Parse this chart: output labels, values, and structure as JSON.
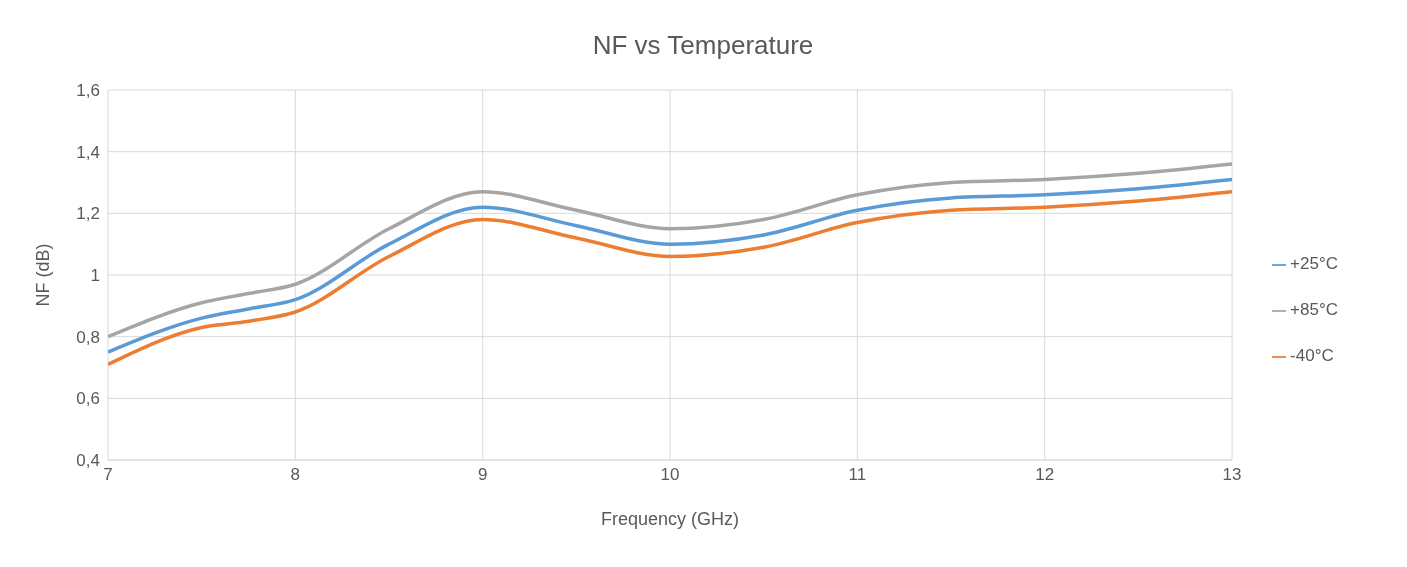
{
  "chart_data": {
    "type": "line",
    "title": "NF vs Temperature",
    "xlabel": "Frequency (GHz)",
    "ylabel": "NF (dB)",
    "x": [
      7,
      7.5,
      7.75,
      8,
      8.5,
      9,
      9.5,
      10,
      10.5,
      11,
      11.5,
      12,
      12.5,
      13
    ],
    "series": [
      {
        "name": "+25°C",
        "color": "#5b9bd5",
        "values": [
          0.75,
          0.86,
          0.89,
          0.92,
          1.1,
          1.22,
          1.16,
          1.1,
          1.13,
          1.21,
          1.25,
          1.26,
          1.28,
          1.31
        ]
      },
      {
        "name": "+85°C",
        "color": "#a5a5a5",
        "values": [
          0.8,
          0.91,
          0.94,
          0.97,
          1.15,
          1.27,
          1.21,
          1.15,
          1.18,
          1.26,
          1.3,
          1.31,
          1.33,
          1.36
        ]
      },
      {
        "name": "-40°C",
        "color": "#ed7d31",
        "values": [
          0.71,
          0.83,
          0.85,
          0.88,
          1.06,
          1.18,
          1.12,
          1.06,
          1.09,
          1.17,
          1.21,
          1.22,
          1.24,
          1.27
        ]
      }
    ],
    "xlim": [
      7,
      13
    ],
    "xticks": [
      7,
      8,
      9,
      10,
      11,
      12,
      13
    ],
    "ylim": [
      0.4,
      1.6
    ],
    "yticks": [
      {
        "value": 0.4,
        "label": "0,4"
      },
      {
        "value": 0.6,
        "label": "0,6"
      },
      {
        "value": 0.8,
        "label": "0,8"
      },
      {
        "value": 1,
        "label": "1"
      },
      {
        "value": 1.2,
        "label": "1,2"
      },
      {
        "value": 1.4,
        "label": "1,4"
      },
      {
        "value": 1.6,
        "label": "1,6"
      }
    ],
    "grid": true,
    "legend": "right",
    "marker": "none",
    "line_style": "solid"
  }
}
